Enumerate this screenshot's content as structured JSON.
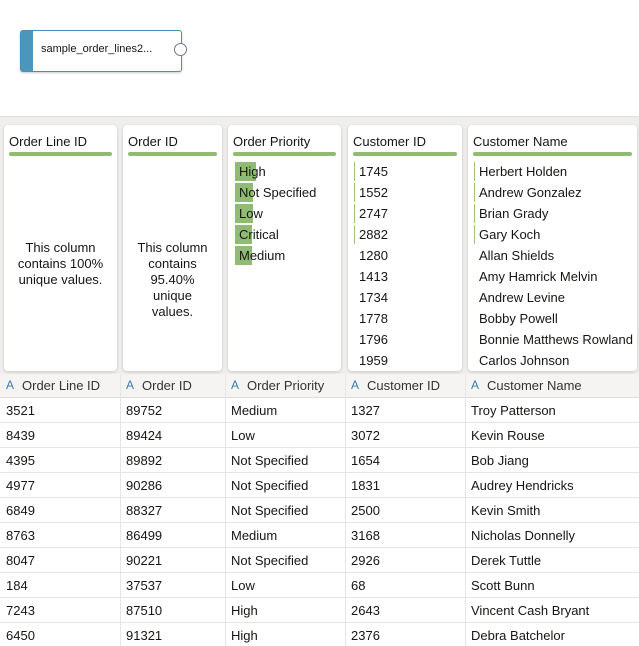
{
  "node": {
    "label": "sample_order_lines2..."
  },
  "profiles": [
    {
      "title": "Order Line ID",
      "summary": "This column contains 100% unique values."
    },
    {
      "title": "Order ID",
      "summary": "This column contains 95.40% unique values."
    },
    {
      "title": "Order Priority",
      "values": [
        "High",
        "Not Specified",
        "Low",
        "Critical",
        "Medium"
      ]
    },
    {
      "title": "Customer ID",
      "values": [
        1745,
        1552,
        2747,
        2882,
        1280,
        1413,
        1734,
        1778,
        1796,
        1959
      ]
    },
    {
      "title": "Customer Name",
      "values": [
        "Herbert Holden",
        "Andrew Gonzalez",
        "Brian Grady",
        "Gary Koch",
        "Allan Shields",
        "Amy Hamrick Melvin",
        "Andrew Levine",
        "Bobby Powell",
        "Bonnie Matthews Rowland",
        "Carlos Johnson"
      ]
    }
  ],
  "table": {
    "type_icon": "A",
    "columns": [
      "Order Line ID",
      "Order ID",
      "Order Priority",
      "Customer ID",
      "Customer Name"
    ],
    "rows": [
      [
        3521,
        89752,
        "Medium",
        1327,
        "Troy Patterson"
      ],
      [
        8439,
        89424,
        "Low",
        3072,
        "Kevin Rouse"
      ],
      [
        4395,
        89892,
        "Not Specified",
        1654,
        "Bob Jiang"
      ],
      [
        4977,
        90286,
        "Not Specified",
        1831,
        "Audrey Hendricks"
      ],
      [
        6849,
        88327,
        "Not Specified",
        2500,
        "Kevin Smith"
      ],
      [
        8763,
        86499,
        "Medium",
        3168,
        "Nicholas Donnelly"
      ],
      [
        8047,
        90221,
        "Not Specified",
        2926,
        "Derek Tuttle"
      ],
      [
        184,
        37537,
        "Low",
        68,
        "Scott Bunn"
      ],
      [
        7243,
        87510,
        "High",
        2643,
        "Vincent Cash Bryant"
      ],
      [
        6450,
        91321,
        "High",
        2376,
        "Debra Batchelor"
      ]
    ]
  }
}
